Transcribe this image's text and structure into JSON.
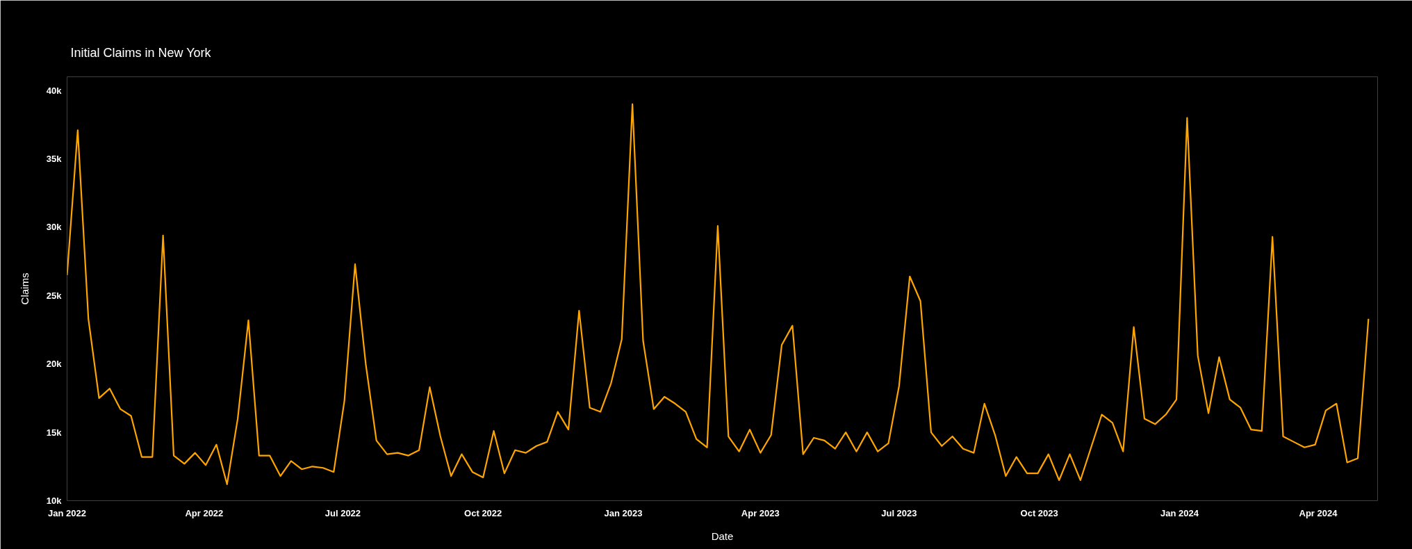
{
  "chart_data": {
    "type": "line",
    "title": "Initial Claims in New York",
    "xlabel": "Date",
    "ylabel": "Claims",
    "x": [
      "2022-01-01",
      "2022-01-08",
      "2022-01-15",
      "2022-01-22",
      "2022-01-29",
      "2022-02-05",
      "2022-02-12",
      "2022-02-19",
      "2022-02-26",
      "2022-03-05",
      "2022-03-12",
      "2022-03-19",
      "2022-03-26",
      "2022-04-02",
      "2022-04-09",
      "2022-04-16",
      "2022-04-23",
      "2022-04-30",
      "2022-05-07",
      "2022-05-14",
      "2022-05-21",
      "2022-05-28",
      "2022-06-04",
      "2022-06-11",
      "2022-06-18",
      "2022-06-25",
      "2022-07-02",
      "2022-07-09",
      "2022-07-16",
      "2022-07-23",
      "2022-07-30",
      "2022-08-06",
      "2022-08-13",
      "2022-08-20",
      "2022-08-27",
      "2022-09-03",
      "2022-09-10",
      "2022-09-17",
      "2022-09-24",
      "2022-10-01",
      "2022-10-08",
      "2022-10-15",
      "2022-10-22",
      "2022-10-29",
      "2022-11-05",
      "2022-11-12",
      "2022-11-19",
      "2022-11-26",
      "2022-12-03",
      "2022-12-10",
      "2022-12-17",
      "2022-12-24",
      "2022-12-31",
      "2023-01-07",
      "2023-01-14",
      "2023-01-21",
      "2023-01-28",
      "2023-02-04",
      "2023-02-11",
      "2023-02-18",
      "2023-02-25",
      "2023-03-04",
      "2023-03-11",
      "2023-03-18",
      "2023-03-25",
      "2023-04-01",
      "2023-04-08",
      "2023-04-15",
      "2023-04-22",
      "2023-04-29",
      "2023-05-06",
      "2023-05-13",
      "2023-05-20",
      "2023-05-27",
      "2023-06-03",
      "2023-06-10",
      "2023-06-17",
      "2023-06-24",
      "2023-07-01",
      "2023-07-08",
      "2023-07-15",
      "2023-07-22",
      "2023-07-29",
      "2023-08-05",
      "2023-08-12",
      "2023-08-19",
      "2023-08-26",
      "2023-09-02",
      "2023-09-09",
      "2023-09-16",
      "2023-09-23",
      "2023-09-30",
      "2023-10-07",
      "2023-10-14",
      "2023-10-21",
      "2023-10-28",
      "2023-11-04",
      "2023-11-11",
      "2023-11-18",
      "2023-11-25",
      "2023-12-02",
      "2023-12-09",
      "2023-12-16",
      "2023-12-23",
      "2023-12-30",
      "2024-01-06",
      "2024-01-13",
      "2024-01-20",
      "2024-01-27",
      "2024-02-03",
      "2024-02-10",
      "2024-02-17",
      "2024-02-24",
      "2024-03-02",
      "2024-03-09",
      "2024-03-16",
      "2024-03-23",
      "2024-03-30",
      "2024-04-06",
      "2024-04-13",
      "2024-04-20",
      "2024-04-27",
      "2024-05-04"
    ],
    "series": [
      {
        "color": "#ffa500",
        "values": [
          26500,
          37100,
          23300,
          17500,
          18200,
          16700,
          16200,
          13200,
          13200,
          29400,
          13300,
          12700,
          13500,
          12600,
          14100,
          11200,
          16000,
          23200,
          13300,
          13300,
          11800,
          12900,
          12300,
          12500,
          12400,
          12100,
          17300,
          27300,
          20000,
          14400,
          13400,
          13500,
          13300,
          13700,
          18300,
          14700,
          11800,
          13400,
          12100,
          11700,
          15100,
          12000,
          13700,
          13500,
          14000,
          14300,
          16500,
          15200,
          23900,
          16800,
          16500,
          18600,
          21800,
          39000,
          21700,
          16700,
          17600,
          17100,
          16500,
          14500,
          13900,
          30100,
          14700,
          13600,
          15200,
          13500,
          14800,
          21400,
          22800,
          13400,
          14600,
          14400,
          13800,
          15000,
          13600,
          15000,
          13600,
          14200,
          18400,
          26400,
          24600,
          15000,
          14000,
          14700,
          13800,
          13500,
          17100,
          14800,
          11800,
          13200,
          12000,
          12000,
          13400,
          11500,
          13400,
          11500,
          13900,
          16300,
          15700,
          13600,
          22700,
          16000,
          15600,
          16300,
          17400,
          38000,
          20600,
          16400,
          20500,
          17400,
          16800,
          15200,
          15100,
          29300,
          14700,
          14300,
          13900,
          14100,
          16600,
          17100,
          12800,
          13100,
          23300
        ]
      }
    ],
    "xlim": [
      "2022-01-01",
      "2024-05-10"
    ],
    "ylim": [
      10000,
      41000
    ],
    "xticks": [
      {
        "value": "2022-01-01",
        "label": "Jan 2022"
      },
      {
        "value": "2022-04-01",
        "label": "Apr 2022"
      },
      {
        "value": "2022-07-01",
        "label": "Jul 2022"
      },
      {
        "value": "2022-10-01",
        "label": "Oct 2022"
      },
      {
        "value": "2023-01-01",
        "label": "Jan 2023"
      },
      {
        "value": "2023-04-01",
        "label": "Apr 2023"
      },
      {
        "value": "2023-07-01",
        "label": "Jul 2023"
      },
      {
        "value": "2023-10-01",
        "label": "Oct 2023"
      },
      {
        "value": "2024-01-01",
        "label": "Jan 2024"
      },
      {
        "value": "2024-04-01",
        "label": "Apr 2024"
      }
    ],
    "yticks": [
      {
        "value": 10000,
        "label": "10k"
      },
      {
        "value": 15000,
        "label": "15k"
      },
      {
        "value": 20000,
        "label": "20k"
      },
      {
        "value": 25000,
        "label": "25k"
      },
      {
        "value": 30000,
        "label": "30k"
      },
      {
        "value": 35000,
        "label": "35k"
      },
      {
        "value": 40000,
        "label": "40k"
      }
    ],
    "grid": false,
    "marker": "none",
    "line_style": "solid"
  }
}
